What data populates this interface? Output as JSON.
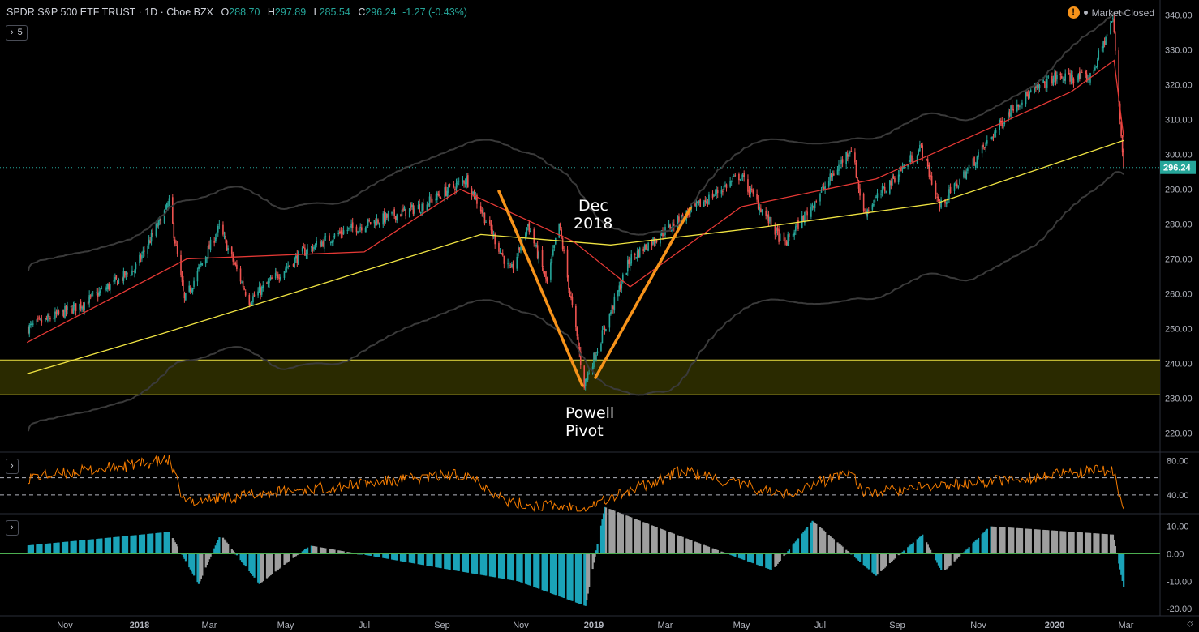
{
  "legend": {
    "symbol": "SPDR S&P 500 ETF TRUST · 1D · Cboe BZX",
    "o_label": "O",
    "o_value": "288.70",
    "h_label": "H",
    "h_value": "297.89",
    "l_label": "L",
    "l_value": "285.54",
    "c_label": "C",
    "c_value": "296.24",
    "change": "-1.27 (-0.43%)"
  },
  "toolbar": {
    "indicators_count": "5",
    "warning_glyph": "!",
    "market_status": "Market Closed"
  },
  "annotations": {
    "dec_line1": "Dec",
    "dec_line2": "2018",
    "powell_line1": "Powell",
    "powell_line2": "Pivot"
  },
  "colors": {
    "background": "#000000",
    "up": "#26a69a",
    "down": "#ef5350",
    "ma_fast": "#e53935",
    "ma_slow": "#f0e442",
    "bands": "#3a3a3a",
    "rsi": "#f57c00",
    "hist_pos": "#1ba3b8",
    "hist_neg": "#9e9e9e",
    "annotation_line": "#f7931a",
    "support_zone": "#2a2a00"
  },
  "chart_data": [
    {
      "type": "candlestick",
      "title": "SPDR S&P 500 ETF TRUST · 1D · Cboe BZX",
      "x_axis_labels": [
        "Nov",
        "2018",
        "Mar",
        "May",
        "Jul",
        "Sep",
        "Nov",
        "2019",
        "Mar",
        "May",
        "Jul",
        "Sep",
        "Nov",
        "2020",
        "Mar"
      ],
      "y_ticks": [
        "340.00",
        "330.00",
        "320.00",
        "310.00",
        "300.00",
        "290.00",
        "280.00",
        "270.00",
        "260.00",
        "250.00",
        "240.00",
        "230.00",
        "220.00"
      ],
      "ylim": [
        215,
        342
      ],
      "last_price": "296.24",
      "close_path": [
        [
          "2017-10-01",
          250
        ],
        [
          "2017-11-15",
          257
        ],
        [
          "2017-12-28",
          267
        ],
        [
          "2018-01-26",
          286
        ],
        [
          "2018-02-08",
          258
        ],
        [
          "2018-03-09",
          279
        ],
        [
          "2018-04-02",
          258
        ],
        [
          "2018-05-15",
          272
        ],
        [
          "2018-06-15",
          278
        ],
        [
          "2018-08-15",
          285
        ],
        [
          "2018-09-20",
          293
        ],
        [
          "2018-10-24",
          266
        ],
        [
          "2018-11-07",
          280
        ],
        [
          "2018-11-23",
          263
        ],
        [
          "2018-12-03",
          280
        ],
        [
          "2018-12-24",
          234
        ],
        [
          "2019-01-31",
          270
        ],
        [
          "2019-03-15",
          282
        ],
        [
          "2019-04-30",
          294
        ],
        [
          "2019-06-03",
          274
        ],
        [
          "2019-07-26",
          302
        ],
        [
          "2019-08-05",
          283
        ],
        [
          "2019-09-19",
          302
        ],
        [
          "2019-10-03",
          285
        ],
        [
          "2019-11-29",
          314
        ],
        [
          "2019-12-31",
          322
        ],
        [
          "2020-01-31",
          322
        ],
        [
          "2020-02-19",
          339
        ],
        [
          "2020-02-28",
          296.24
        ]
      ],
      "ma_fast": [
        [
          "2017-10-01",
          246
        ],
        [
          "2018-02-10",
          270
        ],
        [
          "2018-07-01",
          272
        ],
        [
          "2018-09-15",
          290
        ],
        [
          "2018-12-15",
          275
        ],
        [
          "2019-01-31",
          262
        ],
        [
          "2019-05-01",
          285
        ],
        [
          "2019-08-15",
          293
        ],
        [
          "2020-01-15",
          318
        ],
        [
          "2020-02-20",
          327
        ],
        [
          "2020-02-28",
          305
        ]
      ],
      "ma_slow": [
        [
          "2017-10-01",
          237
        ],
        [
          "2018-01-15",
          248
        ],
        [
          "2018-10-01",
          277
        ],
        [
          "2019-01-15",
          274
        ],
        [
          "2019-05-15",
          279
        ],
        [
          "2019-10-01",
          286
        ],
        [
          "2020-02-28",
          304
        ]
      ],
      "support_zone": [
        231,
        241
      ]
    },
    {
      "type": "line",
      "title": "",
      "y_ticks": [
        "80.00",
        "40.00"
      ],
      "ylim": [
        20,
        88
      ],
      "levels": [
        60,
        40
      ],
      "values_path": [
        [
          "2017-10-01",
          60
        ],
        [
          "2018-01-26",
          80
        ],
        [
          "2018-02-08",
          32
        ],
        [
          "2018-09-20",
          65
        ],
        [
          "2018-10-24",
          30
        ],
        [
          "2018-12-24",
          25
        ],
        [
          "2019-03-15",
          68
        ],
        [
          "2019-06-03",
          40
        ],
        [
          "2019-07-26",
          68
        ],
        [
          "2019-08-05",
          42
        ],
        [
          "2020-02-19",
          70
        ],
        [
          "2020-02-28",
          22
        ]
      ]
    },
    {
      "type": "histogram",
      "title": "",
      "y_ticks": [
        "10.00",
        "0.00",
        "-10.00",
        "-20.00"
      ],
      "ylim": [
        -22,
        14
      ],
      "values_path": [
        [
          "2017-10-01",
          3
        ],
        [
          "2018-01-26",
          8
        ],
        [
          "2018-02-20",
          -11
        ],
        [
          "2018-03-10",
          7
        ],
        [
          "2018-04-10",
          -11
        ],
        [
          "2018-05-20",
          3
        ],
        [
          "2018-10-30",
          -10
        ],
        [
          "2018-12-25",
          -19
        ],
        [
          "2019-01-10",
          17
        ],
        [
          "2019-05-25",
          -6
        ],
        [
          "2019-06-25",
          12
        ],
        [
          "2019-08-15",
          -8
        ],
        [
          "2019-09-20",
          7
        ],
        [
          "2019-10-05",
          -7
        ],
        [
          "2019-11-10",
          10
        ],
        [
          "2020-02-19",
          7
        ],
        [
          "2020-02-28",
          -12
        ]
      ]
    }
  ]
}
